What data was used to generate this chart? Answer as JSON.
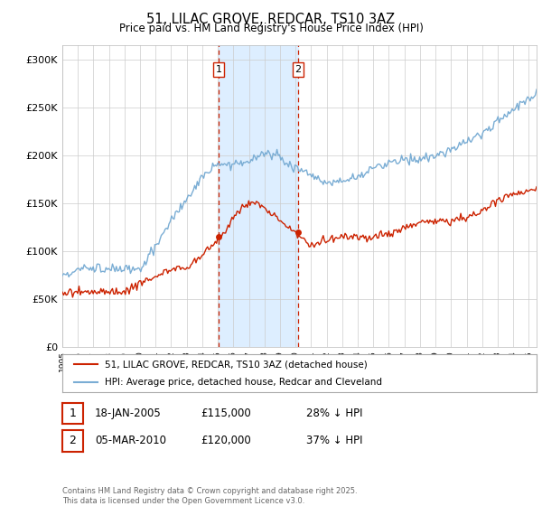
{
  "title": "51, LILAC GROVE, REDCAR, TS10 3AZ",
  "subtitle": "Price paid vs. HM Land Registry's House Price Index (HPI)",
  "ylim": [
    0,
    315000
  ],
  "xlim_start": 1995.0,
  "xlim_end": 2025.5,
  "hpi_color": "#7aadd4",
  "price_color": "#cc2200",
  "highlight_color": "#ddeeff",
  "vline_color": "#cc2200",
  "purchase1_x": 2005.05,
  "purchase1_y": 115000,
  "purchase2_x": 2010.17,
  "purchase2_y": 120000,
  "legend_line1": "51, LILAC GROVE, REDCAR, TS10 3AZ (detached house)",
  "legend_line2": "HPI: Average price, detached house, Redcar and Cleveland",
  "table_row1": [
    "1",
    "18-JAN-2005",
    "£115,000",
    "28% ↓ HPI"
  ],
  "table_row2": [
    "2",
    "05-MAR-2010",
    "£120,000",
    "37% ↓ HPI"
  ],
  "footer": "Contains HM Land Registry data © Crown copyright and database right 2025.\nThis data is licensed under the Open Government Licence v3.0.",
  "background_color": "#ffffff"
}
